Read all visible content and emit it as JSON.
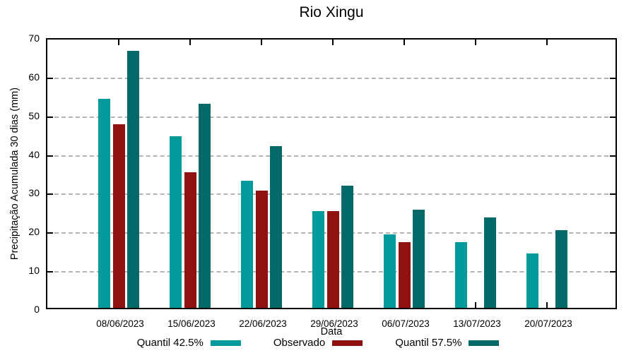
{
  "chart_data": {
    "type": "bar",
    "title": "Rio Xingu",
    "xlabel": "Data",
    "ylabel": "Precipitação Acumulada 30 dias (mm)",
    "ylim": [
      0,
      70
    ],
    "yticks": [
      0,
      10,
      20,
      30,
      40,
      50,
      60,
      70
    ],
    "grid": true,
    "legend_position": "bottom",
    "categories": [
      "08/06/2023",
      "15/06/2023",
      "22/06/2023",
      "29/06/2023",
      "06/07/2023",
      "13/07/2023",
      "20/07/2023"
    ],
    "series": [
      {
        "name": "Quantil 42.5%",
        "color": "#009A9A",
        "values": [
          54.0,
          44.3,
          32.8,
          24.9,
          19.0,
          16.9,
          14.0
        ]
      },
      {
        "name": "Observado",
        "color": "#8F1211",
        "values": [
          47.4,
          35.0,
          30.3,
          24.9,
          16.9,
          null,
          null
        ]
      },
      {
        "name": "Quantil 57.5%",
        "color": "#016968",
        "values": [
          66.4,
          52.7,
          41.7,
          31.5,
          25.4,
          23.4,
          20.1
        ]
      }
    ],
    "frame_color": "#000000",
    "gridline_color": "#a8a8a8"
  }
}
